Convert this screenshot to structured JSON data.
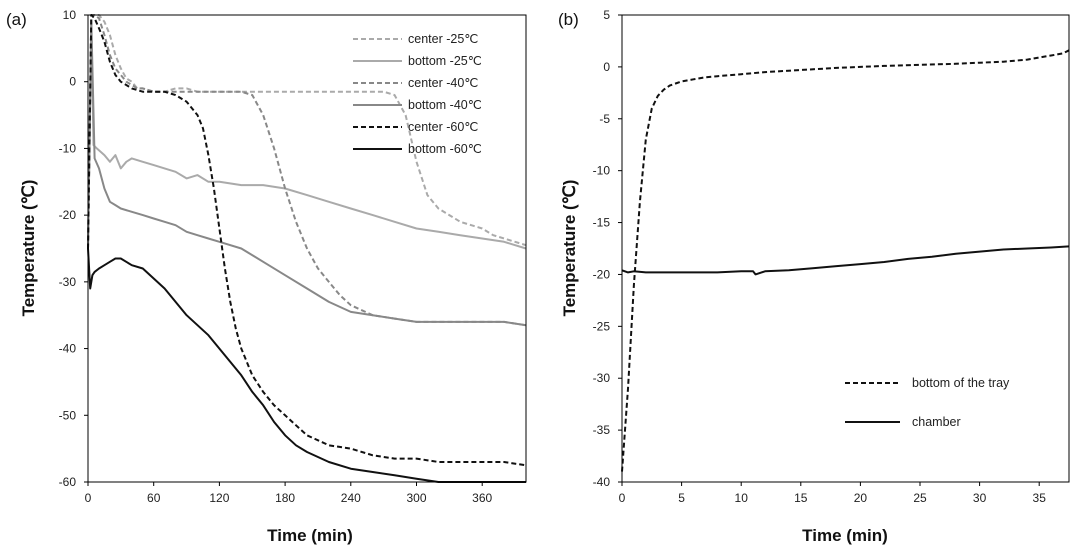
{
  "chart_data": [
    {
      "type": "line",
      "panel_label": "(a)",
      "xlabel": "Time (min)",
      "ylabel": "Temperature (℃)",
      "xlim": [
        0,
        400
      ],
      "ylim": [
        -60,
        10
      ],
      "x_ticks": [
        0,
        60,
        120,
        180,
        240,
        300,
        360
      ],
      "y_ticks": [
        10,
        0,
        -10,
        -20,
        -30,
        -40,
        -50,
        -60
      ],
      "grid": false,
      "legend_position": "top-right",
      "series": [
        {
          "name": "center -25℃",
          "color": "#aaaaaa",
          "dash": "dashed",
          "x": [
            0,
            3,
            6,
            10,
            15,
            20,
            25,
            30,
            35,
            40,
            45,
            50,
            60,
            70,
            80,
            90,
            100,
            110,
            120,
            130,
            140,
            160,
            180,
            200,
            220,
            230,
            240,
            250,
            260,
            270,
            280,
            290,
            300,
            310,
            320,
            330,
            340,
            350,
            360,
            370,
            380,
            390,
            400
          ],
          "y": [
            -25,
            10,
            10,
            10,
            9,
            7,
            4,
            2,
            0.5,
            0,
            -1,
            -1,
            -1.5,
            -1.5,
            -1,
            -1,
            -1.5,
            -1.5,
            -1.5,
            -1.5,
            -1.5,
            -1.5,
            -1.5,
            -1.5,
            -1.5,
            -1.5,
            -1.5,
            -1.5,
            -1.5,
            -1.5,
            -2,
            -5,
            -12,
            -17,
            -19,
            -20,
            -21,
            -21.5,
            -22,
            -23,
            -23.5,
            -24,
            -24.5
          ]
        },
        {
          "name": "bottom -25℃",
          "color": "#aaaaaa",
          "dash": "solid",
          "x": [
            0,
            3,
            5,
            8,
            15,
            20,
            25,
            30,
            35,
            40,
            50,
            60,
            70,
            80,
            90,
            100,
            110,
            120,
            140,
            160,
            180,
            200,
            220,
            240,
            260,
            280,
            300,
            320,
            340,
            360,
            380,
            400
          ],
          "y": [
            -25,
            9,
            -9.5,
            -10,
            -11,
            -12,
            -11,
            -13,
            -12,
            -11.5,
            -12,
            -12.5,
            -13,
            -13.5,
            -14.5,
            -14,
            -15,
            -15,
            -15.5,
            -15.5,
            -16,
            -17,
            -18,
            -19,
            -20,
            -21,
            -22,
            -22.5,
            -23,
            -23.5,
            -24,
            -25
          ]
        },
        {
          "name": "center -40℃",
          "color": "#888888",
          "dash": "dashed",
          "x": [
            0,
            3,
            6,
            10,
            15,
            20,
            25,
            30,
            35,
            40,
            45,
            50,
            60,
            70,
            80,
            90,
            100,
            110,
            120,
            130,
            140,
            150,
            160,
            170,
            180,
            190,
            200,
            210,
            220,
            230,
            240,
            260,
            280,
            300,
            320,
            340,
            360,
            380,
            400
          ],
          "y": [
            -25,
            10,
            10,
            9.5,
            7,
            4,
            2,
            1,
            0,
            -0.5,
            -1,
            -1,
            -1.5,
            -1.5,
            -1.5,
            -1.5,
            -1.5,
            -1.5,
            -1.5,
            -1.5,
            -1.5,
            -2,
            -5,
            -10,
            -16,
            -21,
            -25,
            -28,
            -30,
            -32,
            -33.5,
            -35,
            -35.5,
            -36,
            -36,
            -36,
            -36,
            -36,
            -36.5
          ]
        },
        {
          "name": "bottom -40℃",
          "color": "#888888",
          "dash": "solid",
          "x": [
            0,
            3,
            6,
            10,
            15,
            20,
            25,
            30,
            40,
            50,
            60,
            70,
            80,
            90,
            100,
            110,
            120,
            140,
            160,
            180,
            200,
            220,
            240,
            260,
            280,
            300,
            320,
            340,
            360,
            380,
            400
          ],
          "y": [
            -25,
            9,
            -11.5,
            -13,
            -16,
            -18,
            -18.5,
            -19,
            -19.5,
            -20,
            -20.5,
            -21,
            -21.5,
            -22.5,
            -23,
            -23.5,
            -24,
            -25,
            -27,
            -29,
            -31,
            -33,
            -34.5,
            -35,
            -35.5,
            -36,
            -36,
            -36,
            -36,
            -36,
            -36.5
          ]
        },
        {
          "name": "center -60℃",
          "color": "#111111",
          "dash": "dashed",
          "x": [
            0,
            3,
            6,
            10,
            15,
            20,
            25,
            30,
            35,
            40,
            50,
            60,
            70,
            80,
            90,
            100,
            105,
            110,
            115,
            120,
            125,
            130,
            135,
            140,
            145,
            150,
            160,
            170,
            180,
            190,
            200,
            220,
            240,
            260,
            280,
            300,
            320,
            340,
            360,
            380,
            400
          ],
          "y": [
            -25,
            10,
            9.5,
            8,
            6,
            3,
            1,
            0,
            -0.5,
            -1,
            -1.5,
            -1.5,
            -1.5,
            -2,
            -3,
            -5,
            -7,
            -11,
            -16,
            -22,
            -28,
            -33,
            -37,
            -40,
            -42,
            -44,
            -46.5,
            -48.5,
            -50,
            -51.5,
            -53,
            -54.5,
            -55,
            -56,
            -56.5,
            -56.5,
            -57,
            -57,
            -57,
            -57,
            -57.5
          ]
        },
        {
          "name": "bottom -60℃",
          "color": "#111111",
          "dash": "solid",
          "x": [
            0,
            2,
            4,
            6,
            10,
            15,
            20,
            25,
            30,
            40,
            50,
            60,
            70,
            80,
            90,
            100,
            110,
            120,
            130,
            140,
            150,
            160,
            170,
            180,
            190,
            200,
            220,
            240,
            260,
            280,
            300,
            320,
            340,
            360,
            380,
            400
          ],
          "y": [
            -25,
            -31,
            -29,
            -28.5,
            -28,
            -27.5,
            -27,
            -26.5,
            -26.5,
            -27.5,
            -28,
            -29.5,
            -31,
            -33,
            -35,
            -36.5,
            -38,
            -40,
            -42,
            -44,
            -46.5,
            -48.5,
            -51,
            -53,
            -54.5,
            -55.5,
            -57,
            -58,
            -58.5,
            -59,
            -59.5,
            -60,
            -60,
            -60,
            -60,
            -60
          ]
        }
      ]
    },
    {
      "type": "line",
      "panel_label": "(b)",
      "xlabel": "Time (min)",
      "ylabel": "Temperature (℃)",
      "xlim": [
        0,
        37.5
      ],
      "ylim": [
        -40,
        5
      ],
      "x_ticks": [
        0,
        5,
        10,
        15,
        20,
        25,
        30,
        35
      ],
      "y_ticks": [
        5,
        0,
        -5,
        -10,
        -15,
        -20,
        -25,
        -30,
        -35,
        -40
      ],
      "grid": false,
      "legend_position": "bottom-right",
      "series": [
        {
          "name": "bottom of the tray",
          "color": "#111111",
          "dash": "dashed",
          "x": [
            0,
            0.5,
            1.0,
            1.5,
            2.0,
            2.5,
            3.0,
            3.5,
            4.0,
            4.5,
            5,
            6,
            7,
            8,
            10,
            12,
            15,
            18,
            20,
            22,
            25,
            28,
            30,
            32,
            34,
            35,
            36,
            37,
            37.5
          ],
          "y": [
            -39,
            -31,
            -21,
            -13,
            -7,
            -4,
            -2.8,
            -2.2,
            -1.8,
            -1.6,
            -1.4,
            -1.2,
            -1.0,
            -0.9,
            -0.7,
            -0.5,
            -0.3,
            -0.1,
            0,
            0.1,
            0.2,
            0.3,
            0.4,
            0.5,
            0.7,
            0.9,
            1.1,
            1.3,
            1.6
          ]
        },
        {
          "name": "chamber",
          "color": "#111111",
          "dash": "solid",
          "x": [
            0,
            0.5,
            1,
            2,
            3,
            5,
            8,
            10,
            11,
            11.2,
            12,
            14,
            16,
            18,
            20,
            22,
            24,
            26,
            28,
            30,
            32,
            34,
            36,
            37.5
          ],
          "y": [
            -19.6,
            -19.8,
            -19.7,
            -19.8,
            -19.8,
            -19.8,
            -19.8,
            -19.7,
            -19.7,
            -20.0,
            -19.7,
            -19.6,
            -19.4,
            -19.2,
            -19.0,
            -18.8,
            -18.5,
            -18.3,
            -18.0,
            -17.8,
            -17.6,
            -17.5,
            -17.4,
            -17.3
          ]
        }
      ]
    }
  ]
}
